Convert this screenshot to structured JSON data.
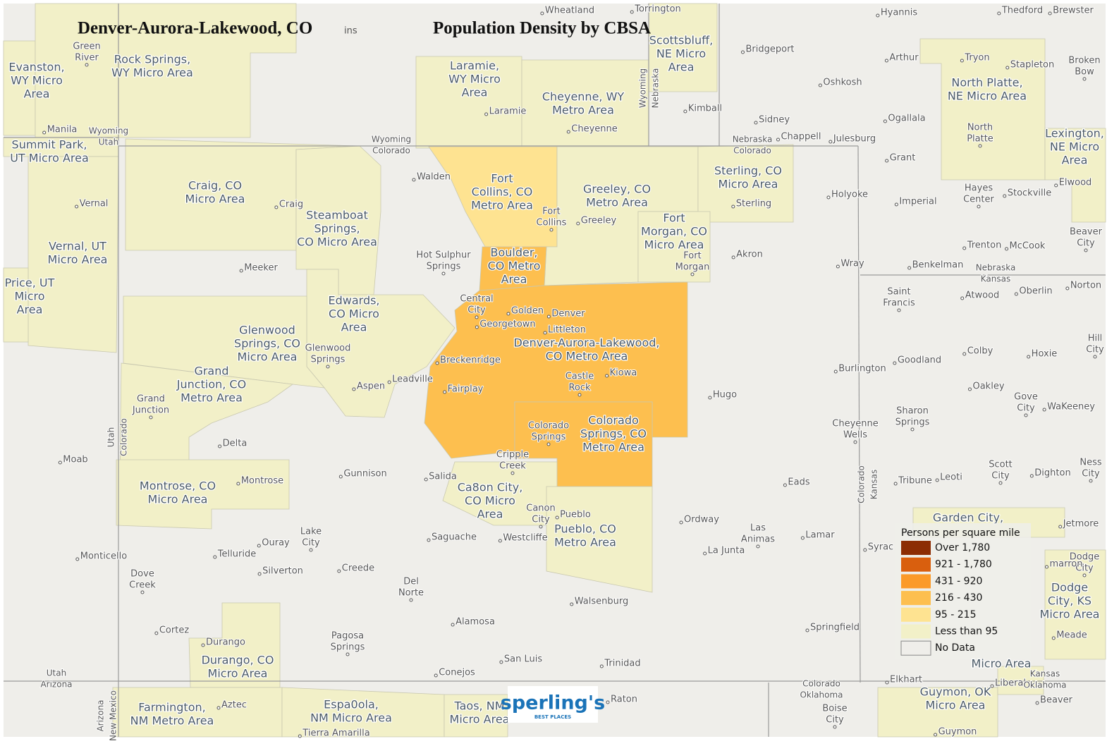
{
  "header": {
    "title": "Denver-Aurora-Lakewood, CO",
    "fragment": "ins",
    "subtitle": "Population Density by CBSA"
  },
  "legend": {
    "title": "Persons per square mile",
    "items": [
      {
        "label": "Over 1,780",
        "color": "#8c2d04"
      },
      {
        "label": "921 - 1,780",
        "color": "#d95f0e"
      },
      {
        "label": "431 - 920",
        "color": "#fb9a29"
      },
      {
        "label": "216 - 430",
        "color": "#fdbf4f"
      },
      {
        "label": "95 - 215",
        "color": "#fee391"
      },
      {
        "label": "Less than 95",
        "color": "#f2f0c8"
      },
      {
        "label": "No Data",
        "color": "#efeeea"
      }
    ]
  },
  "regions": [
    {
      "label": [
        "Evanston,",
        "WY Micro",
        "Area"
      ],
      "color": "#f2f0c8"
    },
    {
      "label": [
        "Rock Springs,",
        "WY Micro Area"
      ],
      "color": "#f2f0c8"
    },
    {
      "label": [
        "Summit Park,",
        "UT Micro Area"
      ],
      "color": "#f2f0c8"
    },
    {
      "label": [
        "Vernal, UT",
        "Micro Area"
      ],
      "color": "#f2f0c8"
    },
    {
      "label": [
        "Price, UT",
        "Micro",
        "Area"
      ],
      "color": "#f2f0c8"
    },
    {
      "label": [
        "Craig, CO",
        "Micro Area"
      ],
      "color": "#f2f0c8"
    },
    {
      "label": [
        "Steamboat",
        "Springs,",
        "CO Micro Area"
      ],
      "color": "#f2f0c8"
    },
    {
      "label": [
        "Edwards,",
        "CO Micro",
        "Area"
      ],
      "color": "#f2f0c8"
    },
    {
      "label": [
        "Glenwood",
        "Springs, CO",
        "Micro Area"
      ],
      "color": "#f2f0c8"
    },
    {
      "label": [
        "Grand",
        "Junction, CO",
        "Metro Area"
      ],
      "color": "#f2f0c8"
    },
    {
      "label": [
        "Montrose, CO",
        "Micro Area"
      ],
      "color": "#f2f0c8"
    },
    {
      "label": [
        "Durango, CO",
        "Micro Area"
      ],
      "color": "#f2f0c8"
    },
    {
      "label": [
        "Farmington,",
        "NM Metro Area"
      ],
      "color": "#f2f0c8"
    },
    {
      "label": [
        "Espa0ola,",
        "NM Micro Area"
      ],
      "color": "#f2f0c8"
    },
    {
      "label": [
        "Taos, NM",
        "Micro Area"
      ],
      "color": "#f2f0c8"
    },
    {
      "label": [
        "Laramie,",
        "WY Micro",
        "Area"
      ],
      "color": "#f2f0c8"
    },
    {
      "label": [
        "Cheyenne, WY",
        "Metro Area"
      ],
      "color": "#f2f0c8"
    },
    {
      "label": [
        "Scottsbluff,",
        "NE Micro",
        "Area"
      ],
      "color": "#f2f0c8"
    },
    {
      "label": [
        "Fort",
        "Collins, CO",
        "Metro Area"
      ],
      "color": "#fee391"
    },
    {
      "label": [
        "Greeley, CO",
        "Metro Area"
      ],
      "color": "#f2f0c8"
    },
    {
      "label": [
        "Sterling, CO",
        "Micro Area"
      ],
      "color": "#f2f0c8"
    },
    {
      "label": [
        "Fort",
        "Morgan, CO",
        "Micro Area"
      ],
      "color": "#f2f0c8"
    },
    {
      "label": [
        "Boulder,",
        "CO Metro",
        "Area"
      ],
      "color": "#fdbf4f"
    },
    {
      "label": [
        "Denver-Aurora-Lakewood,",
        "CO Metro Area"
      ],
      "color": "#fdbf4f"
    },
    {
      "label": [
        "Colorado",
        "Springs, CO",
        "Metro Area"
      ],
      "color": "#fdbf4f"
    },
    {
      "label": [
        "Ca8on City,",
        "CO Micro",
        "Area"
      ],
      "color": "#f2f0c8"
    },
    {
      "label": [
        "Pueblo, CO",
        "Metro Area"
      ],
      "color": "#f2f0c8"
    },
    {
      "label": [
        "North Platte,",
        "NE Micro Area"
      ],
      "color": "#f2f0c8"
    },
    {
      "label": [
        "Lexington,",
        "NE Micro",
        "Area"
      ],
      "color": "#f2f0c8"
    },
    {
      "label": [
        "Garden City,"
      ],
      "color": "#f2f0c8"
    },
    {
      "label": [
        "Micro Area"
      ],
      "color": "#f2f0c8"
    },
    {
      "label": [
        "Dodge",
        "City, KS",
        "Micro Area"
      ],
      "color": "#f2f0c8"
    },
    {
      "label": [
        "Guymon, OK",
        "Micro Area"
      ],
      "color": "#f2f0c8"
    }
  ],
  "cities": [
    [
      "Wheatland"
    ],
    [
      "Torrington"
    ],
    [
      "Hyannis"
    ],
    [
      "Thedford"
    ],
    [
      "Brewster"
    ],
    [
      "Green",
      "River"
    ],
    [
      "Bridgeport"
    ],
    [
      "Arthur"
    ],
    [
      "Tryon"
    ],
    [
      "Stapleton"
    ],
    [
      "Broken",
      "Bow"
    ],
    [
      "Oshkosh"
    ],
    [
      "Laramie"
    ],
    [
      "Kimball"
    ],
    [
      "Sidney"
    ],
    [
      "Ogallala"
    ],
    [
      "Cheyenne"
    ],
    [
      "North",
      "Platte"
    ],
    [
      "Manila"
    ],
    [
      "Chappell"
    ],
    [
      "Julesburg"
    ],
    [
      "Walden"
    ],
    [
      "Grant"
    ],
    [
      "Holyoke"
    ],
    [
      "Imperial"
    ],
    [
      "Hayes",
      "Center"
    ],
    [
      "Stockville"
    ],
    [
      "Elwood"
    ],
    [
      "Vernal"
    ],
    [
      "Craig"
    ],
    [
      "Fort",
      "Collins"
    ],
    [
      "Greeley"
    ],
    [
      "Sterling"
    ],
    [
      "Beaver",
      "City"
    ],
    [
      "Hot Sulphur",
      "Springs"
    ],
    [
      "Akron"
    ],
    [
      "Trenton"
    ],
    [
      "McCook"
    ],
    [
      "Fort",
      "Morgan"
    ],
    [
      "Meeker"
    ],
    [
      "Wray"
    ],
    [
      "Benkelman"
    ],
    [
      "Saint",
      "Francis"
    ],
    [
      "Atwood"
    ],
    [
      "Oberlin"
    ],
    [
      "Norton"
    ],
    [
      "Central",
      "City"
    ],
    [
      "Golden"
    ],
    [
      "Denver"
    ],
    [
      "Georgetown"
    ],
    [
      "Littleton"
    ],
    [
      "Glenwood",
      "Springs"
    ],
    [
      "Breckenridge"
    ],
    [
      "Burlington"
    ],
    [
      "Goodland"
    ],
    [
      "Colby"
    ],
    [
      "Hoxie"
    ],
    [
      "Hill",
      "City"
    ],
    [
      "Kiowa"
    ],
    [
      "Castle",
      "Rock"
    ],
    [
      "Leadville"
    ],
    [
      "Aspen"
    ],
    [
      "Fairplay"
    ],
    [
      "Oakley"
    ],
    [
      "Hugo"
    ],
    [
      "Grand",
      "Junction"
    ],
    [
      "Gove",
      "City"
    ],
    [
      "WaKeeney"
    ],
    [
      "Sharon",
      "Springs"
    ],
    [
      "Cheyenne",
      "Wells"
    ],
    [
      "Colorado",
      "Springs"
    ],
    [
      "Delta"
    ],
    [
      "Cripple",
      "Creek"
    ],
    [
      "Moab"
    ],
    [
      "Scott",
      "City"
    ],
    [
      "Ness",
      "City"
    ],
    [
      "Gunnison"
    ],
    [
      "Salida"
    ],
    [
      "Tribune"
    ],
    [
      "Leoti"
    ],
    [
      "Dighton"
    ],
    [
      "Montrose"
    ],
    [
      "Eads"
    ],
    [
      "Canon",
      "City"
    ],
    [
      "Pueblo"
    ],
    [
      "Ordway"
    ],
    [
      "Lake",
      "City"
    ],
    [
      "Las",
      "Animas"
    ],
    [
      "Jetmore"
    ],
    [
      "Lamar"
    ],
    [
      "Syrac"
    ],
    [
      "Saguache"
    ],
    [
      "Westcliffe"
    ],
    [
      "Ouray"
    ],
    [
      "La Junta"
    ],
    [
      "Telluride"
    ],
    [
      "Monticello"
    ],
    [
      "Dodge",
      "City"
    ],
    [
      "Silverton"
    ],
    [
      "Dove",
      "Creek"
    ],
    [
      "Creede"
    ],
    [
      "Del",
      "Norte"
    ],
    [
      "marron"
    ],
    [
      "Walsenburg"
    ],
    [
      "Alamosa"
    ],
    [
      "Cortez"
    ],
    [
      "Springfield"
    ],
    [
      "Meade"
    ],
    [
      "Durango"
    ],
    [
      "Pagosa",
      "Springs"
    ],
    [
      "San Luis"
    ],
    [
      "Trinidad"
    ],
    [
      "Conejos"
    ],
    [
      "Elkhart"
    ],
    [
      "Liberal"
    ],
    [
      "Raton"
    ],
    [
      "Beaver"
    ],
    [
      "Aztec"
    ],
    [
      "Boise",
      "City"
    ],
    [
      "Tierra Amarilla"
    ],
    [
      "Guymon"
    ]
  ],
  "states": [
    [
      "Wyoming",
      "Utah"
    ],
    [
      "Wyoming",
      "Colorado"
    ],
    [
      "Nebraska",
      "Colorado"
    ],
    [
      "Wyoming",
      "Nebraska"
    ],
    [
      "Nebraska",
      "Kansas"
    ],
    [
      "Colorado",
      "Kansas"
    ],
    [
      "Utah",
      "Colorado"
    ],
    [
      "Utah",
      "Arizona"
    ],
    [
      "Arizona",
      "New Mexico"
    ],
    [
      "Colorado",
      "Oklahoma"
    ],
    [
      "Kansas",
      "Oklahoma"
    ]
  ],
  "logo": {
    "name": "sperling's",
    "tagline": "BEST PLACES"
  }
}
